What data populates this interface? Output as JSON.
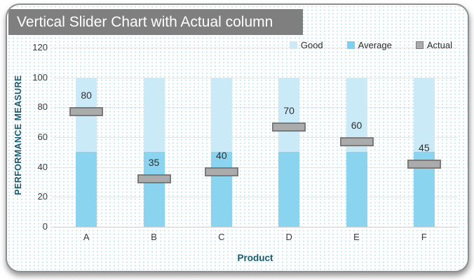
{
  "title_banner": {
    "text": "Vertical Slider Chart with Actual column"
  },
  "legend": {
    "items": [
      {
        "label": "Good",
        "color": "#cbeaf8"
      },
      {
        "label": "Average",
        "color": "#7fd0ee"
      },
      {
        "label": "Actual",
        "color": "#ababab",
        "border": "#7a7a7a"
      }
    ]
  },
  "axes": {
    "y_title": "PERFORMANCE MEASURE",
    "x_title": "Product"
  },
  "chart_data": {
    "type": "bar",
    "stacked": true,
    "title": "Vertical Slider Chart with Actual column",
    "categories": [
      "A",
      "B",
      "C",
      "D",
      "E",
      "F"
    ],
    "series": [
      {
        "name": "Average",
        "color": "#8ad4f0",
        "values": [
          50,
          50,
          50,
          50,
          50,
          50
        ]
      },
      {
        "name": "Good",
        "color": "#cbeaf8",
        "values": [
          50,
          50,
          50,
          50,
          50,
          50
        ]
      }
    ],
    "actual": {
      "name": "Actual",
      "color": "#ababab",
      "border_color": "#7a7a7a",
      "values": [
        80,
        35,
        40,
        70,
        60,
        45
      ]
    },
    "xlabel": "Product",
    "ylabel": "PERFORMANCE MEASURE",
    "ylim": [
      0,
      120
    ],
    "yticks": [
      0,
      20,
      40,
      60,
      80,
      100,
      120
    ],
    "grid": true,
    "legend": [
      "Good",
      "Average",
      "Actual"
    ],
    "legend_position": "top-right"
  }
}
